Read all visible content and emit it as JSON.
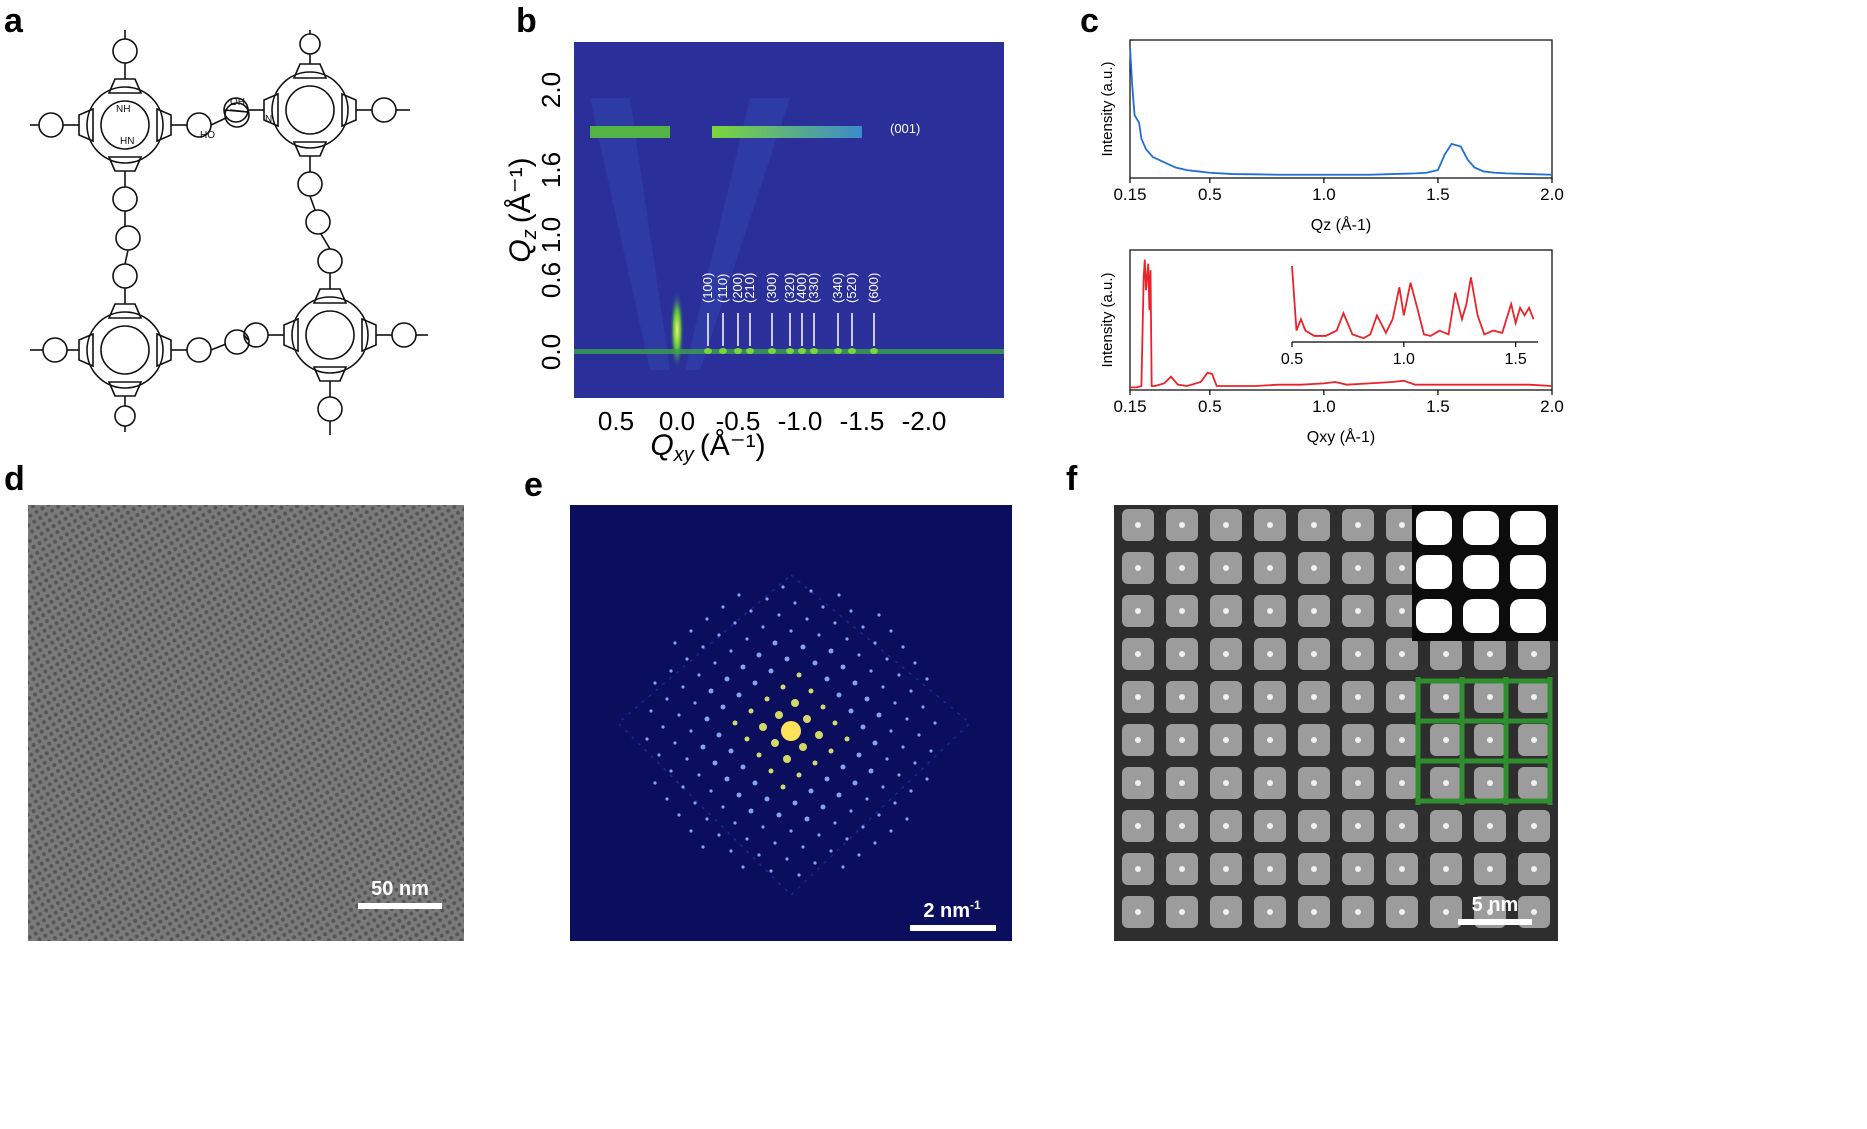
{
  "figure": {
    "panel_labels": [
      "a",
      "b",
      "c",
      "d",
      "e",
      "f"
    ],
    "colors": {
      "gi_background": "#2b2f9a",
      "gi_streak": "#7cd63a",
      "qz_line": "#1f6fd6",
      "qxy_line": "#e8242a",
      "fft_background": "#0a0e5c",
      "overlay_green": "#2f8f2f"
    }
  },
  "panel_a": {
    "atom_labels": [
      "NH",
      "HN",
      "OH",
      "HO",
      "N"
    ]
  },
  "panel_b": {
    "x_axis_label": "Q",
    "x_axis_sub": "xy",
    "x_axis_unit": "(Å⁻¹)",
    "y_axis_label": "Q",
    "y_axis_sub": "z",
    "y_axis_unit": "(Å⁻¹)",
    "x_ticks": [
      "0.5",
      "0.0",
      "-0.5",
      "-1.0",
      "-1.5",
      "-2.0"
    ],
    "y_ticks": [
      "0.0",
      "0.6",
      "1.0",
      "1.6",
      "2.0"
    ],
    "peak_001": "(001)",
    "indices": [
      "(100)",
      "(110)",
      "(200)",
      "(210)",
      "(300)",
      "(320)",
      "(400)",
      "(330)",
      "(340)",
      "(520)",
      "(600)"
    ]
  },
  "chart_data": [
    {
      "type": "line",
      "title": "",
      "xlabel": "Qz (Å-1)",
      "ylabel": "Intensity (a.u.)",
      "xlim": [
        0.15,
        2.0
      ],
      "x_ticks": [
        "0.15",
        "0.5",
        "1.0",
        "1.5",
        "2.0"
      ],
      "series": [
        {
          "x": [
            0.15,
            0.16,
            0.17,
            0.19,
            0.2,
            0.22,
            0.25,
            0.3,
            0.35,
            0.4,
            0.45,
            0.5,
            0.6,
            0.7,
            0.8,
            0.9,
            1.0,
            1.1,
            1.2,
            1.3,
            1.4,
            1.45,
            1.5,
            1.53,
            1.56,
            1.6,
            1.63,
            1.66,
            1.7,
            1.75,
            1.8,
            1.9,
            2.0
          ],
          "y": [
            1.0,
            0.7,
            0.48,
            0.42,
            0.3,
            0.22,
            0.16,
            0.12,
            0.08,
            0.06,
            0.05,
            0.04,
            0.03,
            0.028,
            0.025,
            0.025,
            0.025,
            0.025,
            0.025,
            0.03,
            0.035,
            0.04,
            0.06,
            0.18,
            0.26,
            0.24,
            0.14,
            0.08,
            0.05,
            0.04,
            0.035,
            0.03,
            0.025
          ]
        }
      ]
    },
    {
      "type": "line",
      "title": "",
      "xlabel": "Qxy (Å-1)",
      "ylabel": "Intensity (a.u.)",
      "xlim": [
        0.15,
        2.0
      ],
      "x_ticks": [
        "0.15",
        "0.5",
        "1.0",
        "1.5",
        "2.0"
      ],
      "series": [
        {
          "x": [
            0.15,
            0.18,
            0.2,
            0.21,
            0.215,
            0.22,
            0.23,
            0.235,
            0.24,
            0.245,
            0.26,
            0.3,
            0.33,
            0.36,
            0.4,
            0.46,
            0.49,
            0.51,
            0.53,
            0.56,
            0.6,
            0.7,
            0.8,
            0.9,
            1.0,
            1.05,
            1.1,
            1.2,
            1.3,
            1.35,
            1.4,
            1.5,
            1.6,
            1.7,
            1.8,
            1.9,
            2.0
          ],
          "y": [
            0.02,
            0.02,
            0.03,
            0.85,
            0.98,
            0.75,
            0.95,
            0.6,
            0.9,
            0.03,
            0.03,
            0.05,
            0.1,
            0.04,
            0.03,
            0.06,
            0.13,
            0.12,
            0.03,
            0.03,
            0.03,
            0.03,
            0.04,
            0.04,
            0.05,
            0.06,
            0.04,
            0.05,
            0.06,
            0.07,
            0.04,
            0.04,
            0.04,
            0.04,
            0.04,
            0.04,
            0.03
          ]
        }
      ]
    },
    {
      "type": "line",
      "title": "",
      "xlabel": "",
      "ylabel": "",
      "xlim": [
        0.5,
        1.6
      ],
      "x_ticks": [
        "0.5",
        "1.0",
        "1.5"
      ],
      "series": [
        {
          "x": [
            0.5,
            0.52,
            0.54,
            0.56,
            0.6,
            0.65,
            0.7,
            0.73,
            0.77,
            0.82,
            0.85,
            0.88,
            0.92,
            0.95,
            0.98,
            1.0,
            1.03,
            1.06,
            1.09,
            1.12,
            1.16,
            1.2,
            1.23,
            1.26,
            1.28,
            1.3,
            1.33,
            1.36,
            1.4,
            1.44,
            1.48,
            1.5,
            1.52,
            1.54,
            1.56,
            1.58
          ],
          "y": [
            1.0,
            0.15,
            0.3,
            0.15,
            0.08,
            0.08,
            0.15,
            0.38,
            0.1,
            0.05,
            0.1,
            0.35,
            0.12,
            0.3,
            0.72,
            0.35,
            0.78,
            0.45,
            0.1,
            0.08,
            0.15,
            0.1,
            0.65,
            0.3,
            0.5,
            0.85,
            0.35,
            0.1,
            0.15,
            0.12,
            0.5,
            0.25,
            0.45,
            0.35,
            0.45,
            0.3
          ]
        }
      ]
    }
  ],
  "panel_d": {
    "scale_bar": "50 nm"
  },
  "panel_e": {
    "scale_bar": "2 nm",
    "scale_sup": "-1"
  },
  "panel_f": {
    "scale_bar": "5 nm"
  }
}
